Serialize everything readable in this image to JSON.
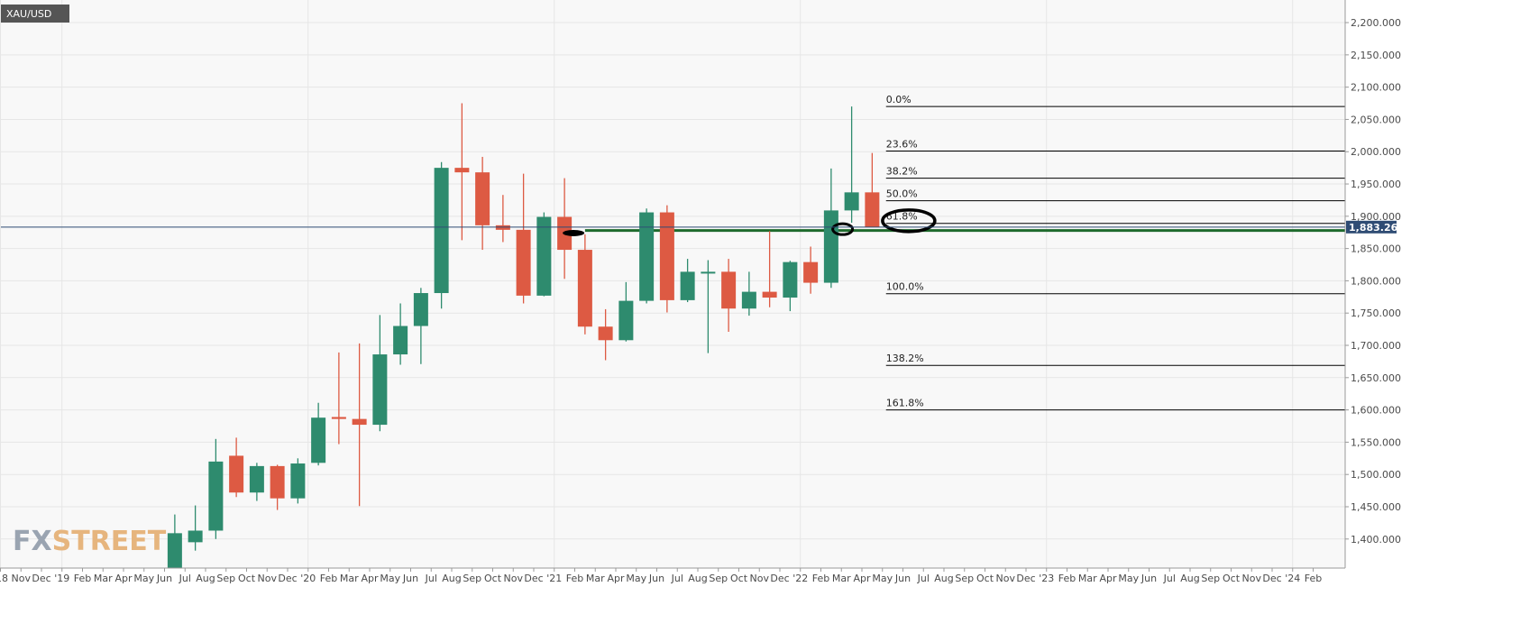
{
  "chart_data": {
    "type": "candlestick",
    "symbol": "XAU/USD",
    "watermark": {
      "part1": "FX",
      "part2": "STREET"
    },
    "current_price": 1883.26,
    "current_price_label": "1,883.260",
    "ylim": [
      1355,
      2235
    ],
    "y_ticks": [
      {
        "value": 2200,
        "label": "2,200.000"
      },
      {
        "value": 2150,
        "label": "2,150.000"
      },
      {
        "value": 2100,
        "label": "2,100.000"
      },
      {
        "value": 2050,
        "label": "2,050.000"
      },
      {
        "value": 2000,
        "label": "2,000.000"
      },
      {
        "value": 1950,
        "label": "1,950.000"
      },
      {
        "value": 1900,
        "label": "1,900.000"
      },
      {
        "value": 1850,
        "label": "1,850.000"
      },
      {
        "value": 1800,
        "label": "1,800.000"
      },
      {
        "value": 1750,
        "label": "1,750.000"
      },
      {
        "value": 1700,
        "label": "1,700.000"
      },
      {
        "value": 1650,
        "label": "1,650.000"
      },
      {
        "value": 1600,
        "label": "1,600.000"
      },
      {
        "value": 1550,
        "label": "1,550.000"
      },
      {
        "value": 1500,
        "label": "1,500.000"
      },
      {
        "value": 1450,
        "label": "1,450.000"
      },
      {
        "value": 1400,
        "label": "1,400.000"
      }
    ],
    "x_ticks": [
      "'18",
      "Nov",
      "Dec",
      "'19",
      "Feb",
      "Mar",
      "Apr",
      "May",
      "Jun",
      "Jul",
      "Aug",
      "Sep",
      "Oct",
      "Nov",
      "Dec",
      "'20",
      "Feb",
      "Mar",
      "Apr",
      "May",
      "Jun",
      "Jul",
      "Aug",
      "Sep",
      "Oct",
      "Nov",
      "Dec",
      "'21",
      "Feb",
      "Mar",
      "Apr",
      "May",
      "Jun",
      "Jul",
      "Aug",
      "Sep",
      "Oct",
      "Nov",
      "Dec",
      "'22",
      "Feb",
      "Mar",
      "Apr",
      "May",
      "Jun",
      "Jul",
      "Aug",
      "Sep",
      "Oct",
      "Nov",
      "Dec",
      "'23",
      "Feb",
      "Mar",
      "Apr",
      "May",
      "Jun",
      "Jul",
      "Aug",
      "Sep",
      "Oct",
      "Nov",
      "Dec",
      "'24",
      "Feb"
    ],
    "candles": [
      {
        "month": "2019-06",
        "open": 1305,
        "high": 1438,
        "low": 1300,
        "close": 1409
      },
      {
        "month": "2019-07",
        "open": 1395,
        "high": 1452,
        "low": 1382,
        "close": 1413
      },
      {
        "month": "2019-08",
        "open": 1413,
        "high": 1555,
        "low": 1400,
        "close": 1520
      },
      {
        "month": "2019-09",
        "open": 1529,
        "high": 1557,
        "low": 1465,
        "close": 1472
      },
      {
        "month": "2019-10",
        "open": 1472,
        "high": 1518,
        "low": 1459,
        "close": 1513
      },
      {
        "month": "2019-11",
        "open": 1513,
        "high": 1515,
        "low": 1445,
        "close": 1463
      },
      {
        "month": "2019-12",
        "open": 1463,
        "high": 1525,
        "low": 1455,
        "close": 1517
      },
      {
        "month": "2020-01",
        "open": 1518,
        "high": 1611,
        "low": 1514,
        "close": 1588
      },
      {
        "month": "2020-02",
        "open": 1589,
        "high": 1689,
        "low": 1547,
        "close": 1586
      },
      {
        "month": "2020-03",
        "open": 1586,
        "high": 1703,
        "low": 1451,
        "close": 1577
      },
      {
        "month": "2020-04",
        "open": 1577,
        "high": 1747,
        "low": 1567,
        "close": 1686
      },
      {
        "month": "2020-05",
        "open": 1686,
        "high": 1765,
        "low": 1670,
        "close": 1730
      },
      {
        "month": "2020-06",
        "open": 1730,
        "high": 1789,
        "low": 1671,
        "close": 1781
      },
      {
        "month": "2020-07",
        "open": 1781,
        "high": 1984,
        "low": 1757,
        "close": 1975
      },
      {
        "month": "2020-08",
        "open": 1975,
        "high": 2075,
        "low": 1863,
        "close": 1968
      },
      {
        "month": "2020-09",
        "open": 1968,
        "high": 1992,
        "low": 1848,
        "close": 1886
      },
      {
        "month": "2020-10",
        "open": 1886,
        "high": 1933,
        "low": 1860,
        "close": 1879
      },
      {
        "month": "2020-11",
        "open": 1879,
        "high": 1966,
        "low": 1765,
        "close": 1777
      },
      {
        "month": "2020-12",
        "open": 1777,
        "high": 1906,
        "low": 1776,
        "close": 1899
      },
      {
        "month": "2021-01",
        "open": 1899,
        "high": 1959,
        "low": 1803,
        "close": 1848
      },
      {
        "month": "2021-02",
        "open": 1848,
        "high": 1872,
        "low": 1717,
        "close": 1729
      },
      {
        "month": "2021-03",
        "open": 1729,
        "high": 1756,
        "low": 1677,
        "close": 1708
      },
      {
        "month": "2021-04",
        "open": 1708,
        "high": 1798,
        "low": 1706,
        "close": 1769
      },
      {
        "month": "2021-05",
        "open": 1769,
        "high": 1912,
        "low": 1765,
        "close": 1906
      },
      {
        "month": "2021-06",
        "open": 1906,
        "high": 1917,
        "low": 1751,
        "close": 1770
      },
      {
        "month": "2021-07",
        "open": 1770,
        "high": 1834,
        "low": 1767,
        "close": 1814
      },
      {
        "month": "2021-08",
        "open": 1814,
        "high": 1832,
        "low": 1688,
        "close": 1814
      },
      {
        "month": "2021-09",
        "open": 1814,
        "high": 1834,
        "low": 1721,
        "close": 1757
      },
      {
        "month": "2021-10",
        "open": 1757,
        "high": 1814,
        "low": 1746,
        "close": 1783
      },
      {
        "month": "2021-11",
        "open": 1783,
        "high": 1877,
        "low": 1759,
        "close": 1774
      },
      {
        "month": "2021-12",
        "open": 1774,
        "high": 1831,
        "low": 1753,
        "close": 1829
      },
      {
        "month": "2022-01",
        "open": 1829,
        "high": 1853,
        "low": 1780,
        "close": 1797
      },
      {
        "month": "2022-02",
        "open": 1797,
        "high": 1974,
        "low": 1789,
        "close": 1909
      },
      {
        "month": "2022-03",
        "open": 1909,
        "high": 2070,
        "low": 1890,
        "close": 1937
      },
      {
        "month": "2022-04",
        "open": 1937,
        "high": 1998,
        "low": 1883,
        "close": 1883
      }
    ],
    "fibonacci": {
      "start_month": "2022-05",
      "levels": [
        {
          "label": "0.0%",
          "value": 2070
        },
        {
          "label": "23.6%",
          "value": 2001
        },
        {
          "label": "38.2%",
          "value": 1959
        },
        {
          "label": "50.0%",
          "value": 1924
        },
        {
          "label": "61.8%",
          "value": 1889
        },
        {
          "label": "100.0%",
          "value": 1780
        },
        {
          "label": "138.2%",
          "value": 1669
        },
        {
          "label": "161.8%",
          "value": 1600
        }
      ]
    },
    "support_line": {
      "value": 1878,
      "from_month": "2021-02",
      "to_month": "2024-02",
      "color": "#1e6a2c"
    },
    "annotations": [
      {
        "type": "ellipse-filled",
        "month": "2021-01",
        "value": 1874
      },
      {
        "type": "ellipse",
        "month": "2022-03",
        "value": 1880
      },
      {
        "type": "ellipse-large",
        "month": "2022-06",
        "value": 1893
      }
    ],
    "colors": {
      "up": "#2e8b6e",
      "down": "#dd5a43",
      "price_tag": "#2f4c74",
      "plot_bg": "#f8f8f8",
      "grid": "#e6e6e6"
    },
    "grid": true
  }
}
